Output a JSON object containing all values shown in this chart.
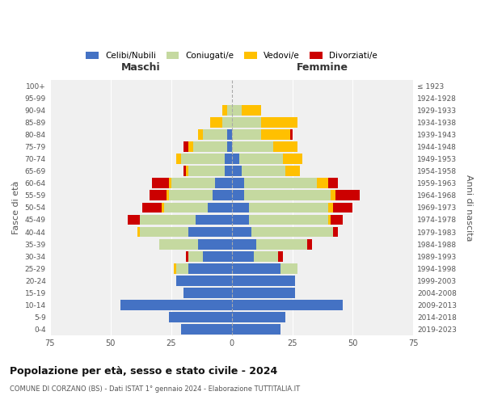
{
  "age_groups": [
    "0-4",
    "5-9",
    "10-14",
    "15-19",
    "20-24",
    "25-29",
    "30-34",
    "35-39",
    "40-44",
    "45-49",
    "50-54",
    "55-59",
    "60-64",
    "65-69",
    "70-74",
    "75-79",
    "80-84",
    "85-89",
    "90-94",
    "95-99",
    "100+"
  ],
  "birth_years": [
    "2019-2023",
    "2014-2018",
    "2009-2013",
    "2004-2008",
    "1999-2003",
    "1994-1998",
    "1989-1993",
    "1984-1988",
    "1979-1983",
    "1974-1978",
    "1969-1973",
    "1964-1968",
    "1959-1963",
    "1954-1958",
    "1949-1953",
    "1944-1948",
    "1939-1943",
    "1934-1938",
    "1929-1933",
    "1924-1928",
    "≤ 1923"
  ],
  "male": {
    "celibe": [
      21,
      26,
      46,
      20,
      23,
      18,
      12,
      14,
      18,
      15,
      10,
      8,
      7,
      3,
      3,
      2,
      2,
      0,
      0,
      0,
      0
    ],
    "coniugato": [
      0,
      0,
      0,
      0,
      0,
      5,
      6,
      16,
      20,
      23,
      18,
      18,
      18,
      15,
      18,
      14,
      10,
      4,
      2,
      0,
      0
    ],
    "vedovo": [
      0,
      0,
      0,
      0,
      0,
      1,
      0,
      0,
      1,
      0,
      1,
      1,
      1,
      1,
      2,
      2,
      2,
      5,
      2,
      0,
      0
    ],
    "divorziato": [
      0,
      0,
      0,
      0,
      0,
      0,
      1,
      0,
      0,
      5,
      8,
      7,
      7,
      1,
      0,
      2,
      0,
      0,
      0,
      0,
      0
    ]
  },
  "female": {
    "nubile": [
      20,
      22,
      46,
      26,
      26,
      20,
      9,
      10,
      8,
      7,
      7,
      5,
      5,
      4,
      3,
      0,
      0,
      0,
      0,
      0,
      0
    ],
    "coniugata": [
      0,
      0,
      0,
      0,
      0,
      7,
      10,
      21,
      34,
      33,
      33,
      36,
      30,
      18,
      18,
      17,
      12,
      12,
      4,
      0,
      0
    ],
    "vedova": [
      0,
      0,
      0,
      0,
      0,
      0,
      0,
      0,
      0,
      1,
      2,
      2,
      5,
      6,
      8,
      10,
      12,
      15,
      8,
      0,
      0
    ],
    "divorziata": [
      0,
      0,
      0,
      0,
      0,
      0,
      2,
      2,
      2,
      5,
      8,
      10,
      4,
      0,
      0,
      0,
      1,
      0,
      0,
      0,
      0
    ]
  },
  "colors": {
    "celibe": "#4472c4",
    "coniugato": "#c5d9a0",
    "vedovo": "#ffc000",
    "divorziato": "#cc0000"
  },
  "xlim": 75,
  "title": "Popolazione per età, sesso e stato civile - 2024",
  "subtitle": "COMUNE DI CORZANO (BS) - Dati ISTAT 1° gennaio 2024 - Elaborazione TUTTITALIA.IT",
  "ylabel_left": "Fasce di età",
  "ylabel_right": "Anni di nascita",
  "xlabel_left": "Maschi",
  "xlabel_right": "Femmine",
  "legend_labels": [
    "Celibi/Nubili",
    "Coniugati/e",
    "Vedovi/e",
    "Divorziati/e"
  ],
  "bg_color": "#f0f0f0"
}
